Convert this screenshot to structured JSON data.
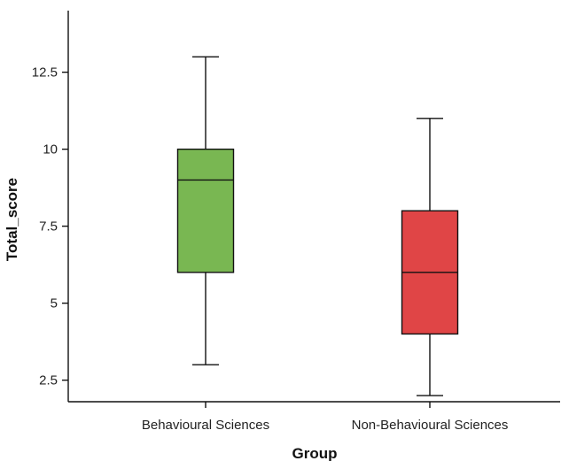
{
  "chart_data": {
    "type": "boxplot",
    "title": "",
    "xlabel": "Group",
    "ylabel": "Total_score",
    "ylim": [
      1.8,
      14.5
    ],
    "yticks": [
      2.5,
      5,
      7.5,
      10,
      12.5
    ],
    "ytick_labels": [
      "2.5",
      "5",
      "7.5",
      "10",
      "12.5"
    ],
    "grid": false,
    "legend": "none",
    "categories": [
      "Behavioural Sciences",
      "Non-Behavioural Sciences"
    ],
    "boxes": [
      {
        "category": "Behavioural Sciences",
        "min": 3,
        "q1": 6,
        "median": 9,
        "q3": 10,
        "max": 13,
        "color": "#79b752"
      },
      {
        "category": "Non-Behavioural Sciences",
        "min": 2,
        "q1": 4,
        "median": 6,
        "q3": 8,
        "max": 11,
        "color": "#e04546"
      }
    ]
  }
}
